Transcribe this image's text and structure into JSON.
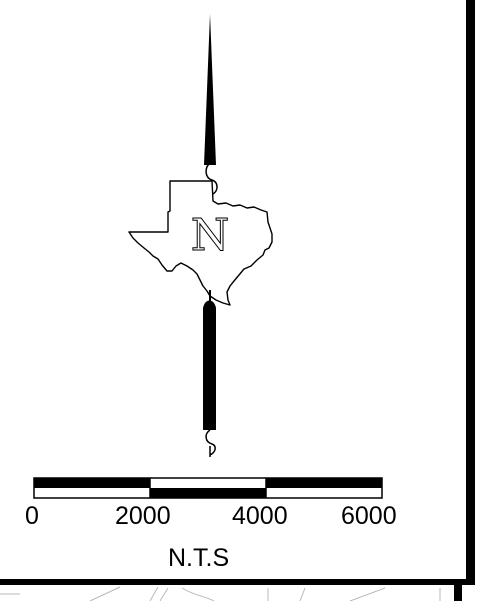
{
  "north_arrow": {
    "letter": "N"
  },
  "scale_bar": {
    "labels": [
      "0",
      "2000",
      "4000",
      "6000"
    ],
    "note": "N.T.S"
  },
  "colors": {
    "ink": "#000000",
    "paper": "#ffffff",
    "faint_lines": "#b8b8b8"
  }
}
